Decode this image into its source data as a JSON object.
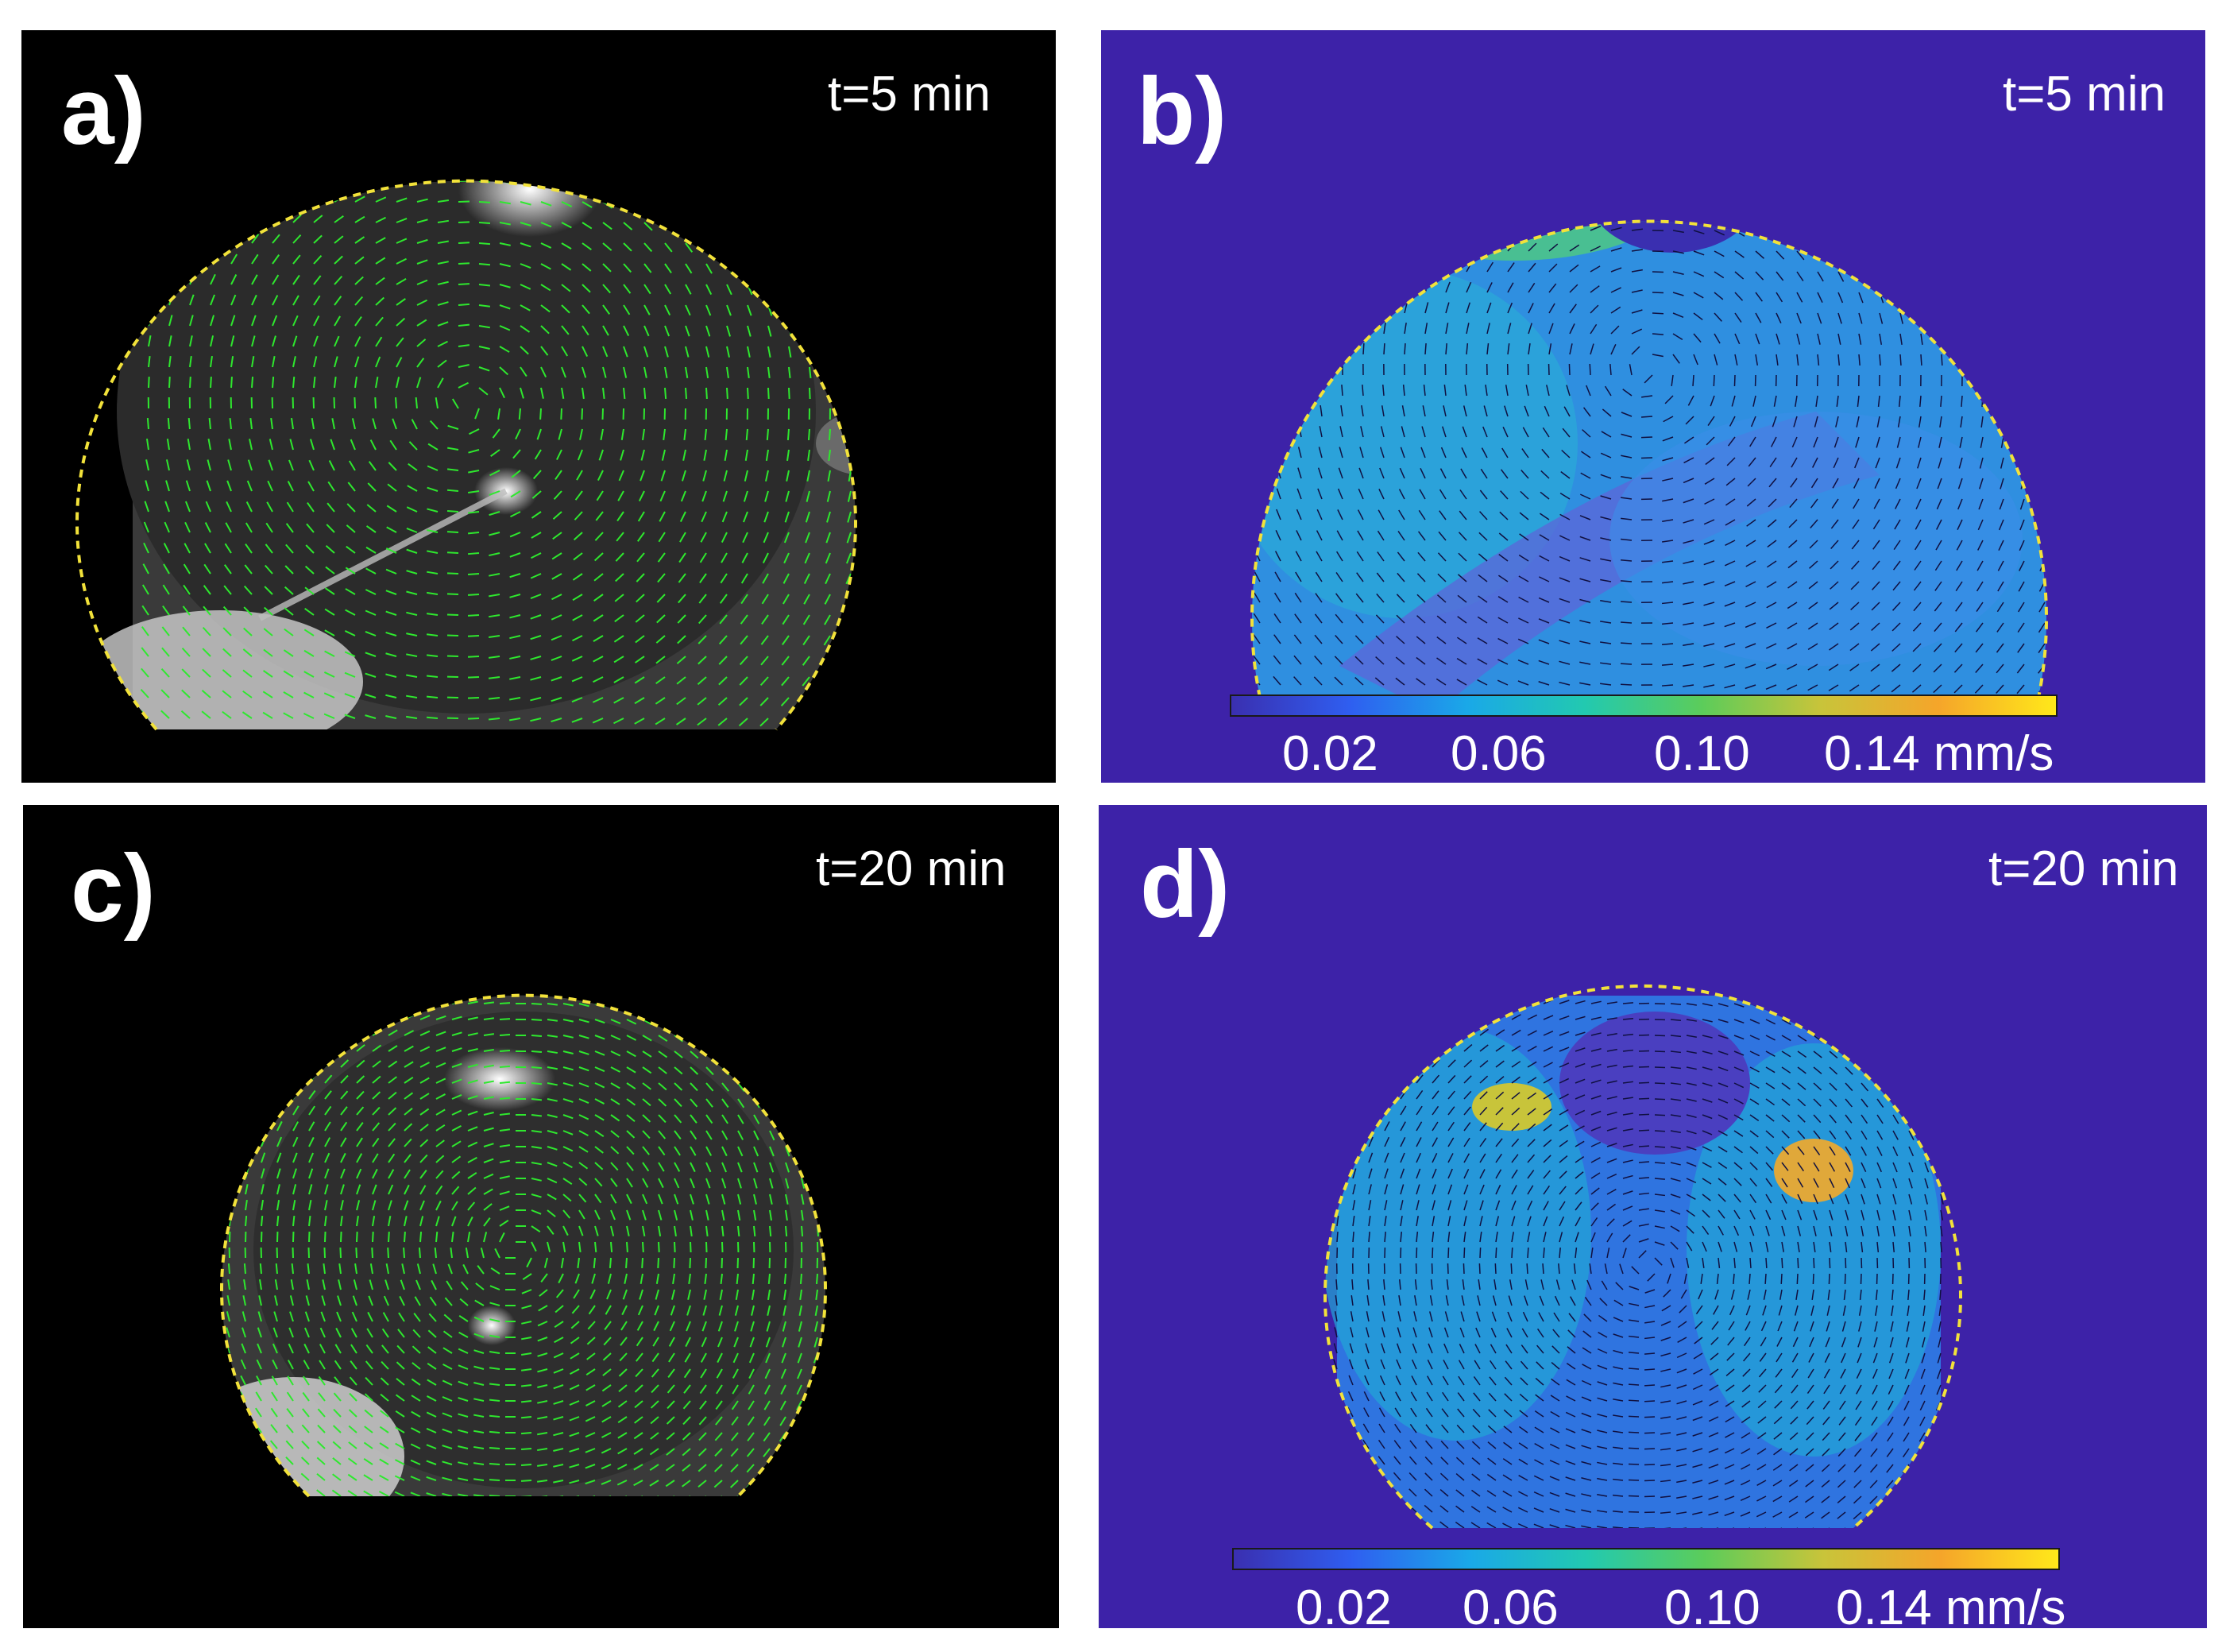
{
  "panels": {
    "a": {
      "label": "a)",
      "time": "t=5 min"
    },
    "b": {
      "label": "b)",
      "time": "t=5 min"
    },
    "c": {
      "label": "c)",
      "time": "t=20 min"
    },
    "d": {
      "label": "d)",
      "time": "t=20 min"
    }
  },
  "colorbar": {
    "ticks": [
      "0.02",
      "0.06",
      "0.10",
      "0.14 mm/s"
    ],
    "colors": [
      "#3a2fb0",
      "#2f5ef0",
      "#1aa8e8",
      "#22c9b0",
      "#5ccc5a",
      "#c8c43a",
      "#f5a52a",
      "#ffe81a"
    ]
  },
  "colors": {
    "background_dark": "#000000",
    "background_velocity": "#3d22a8",
    "vectors_green": "#2ee82e",
    "boundary_dashed": "#f2e23a"
  }
}
